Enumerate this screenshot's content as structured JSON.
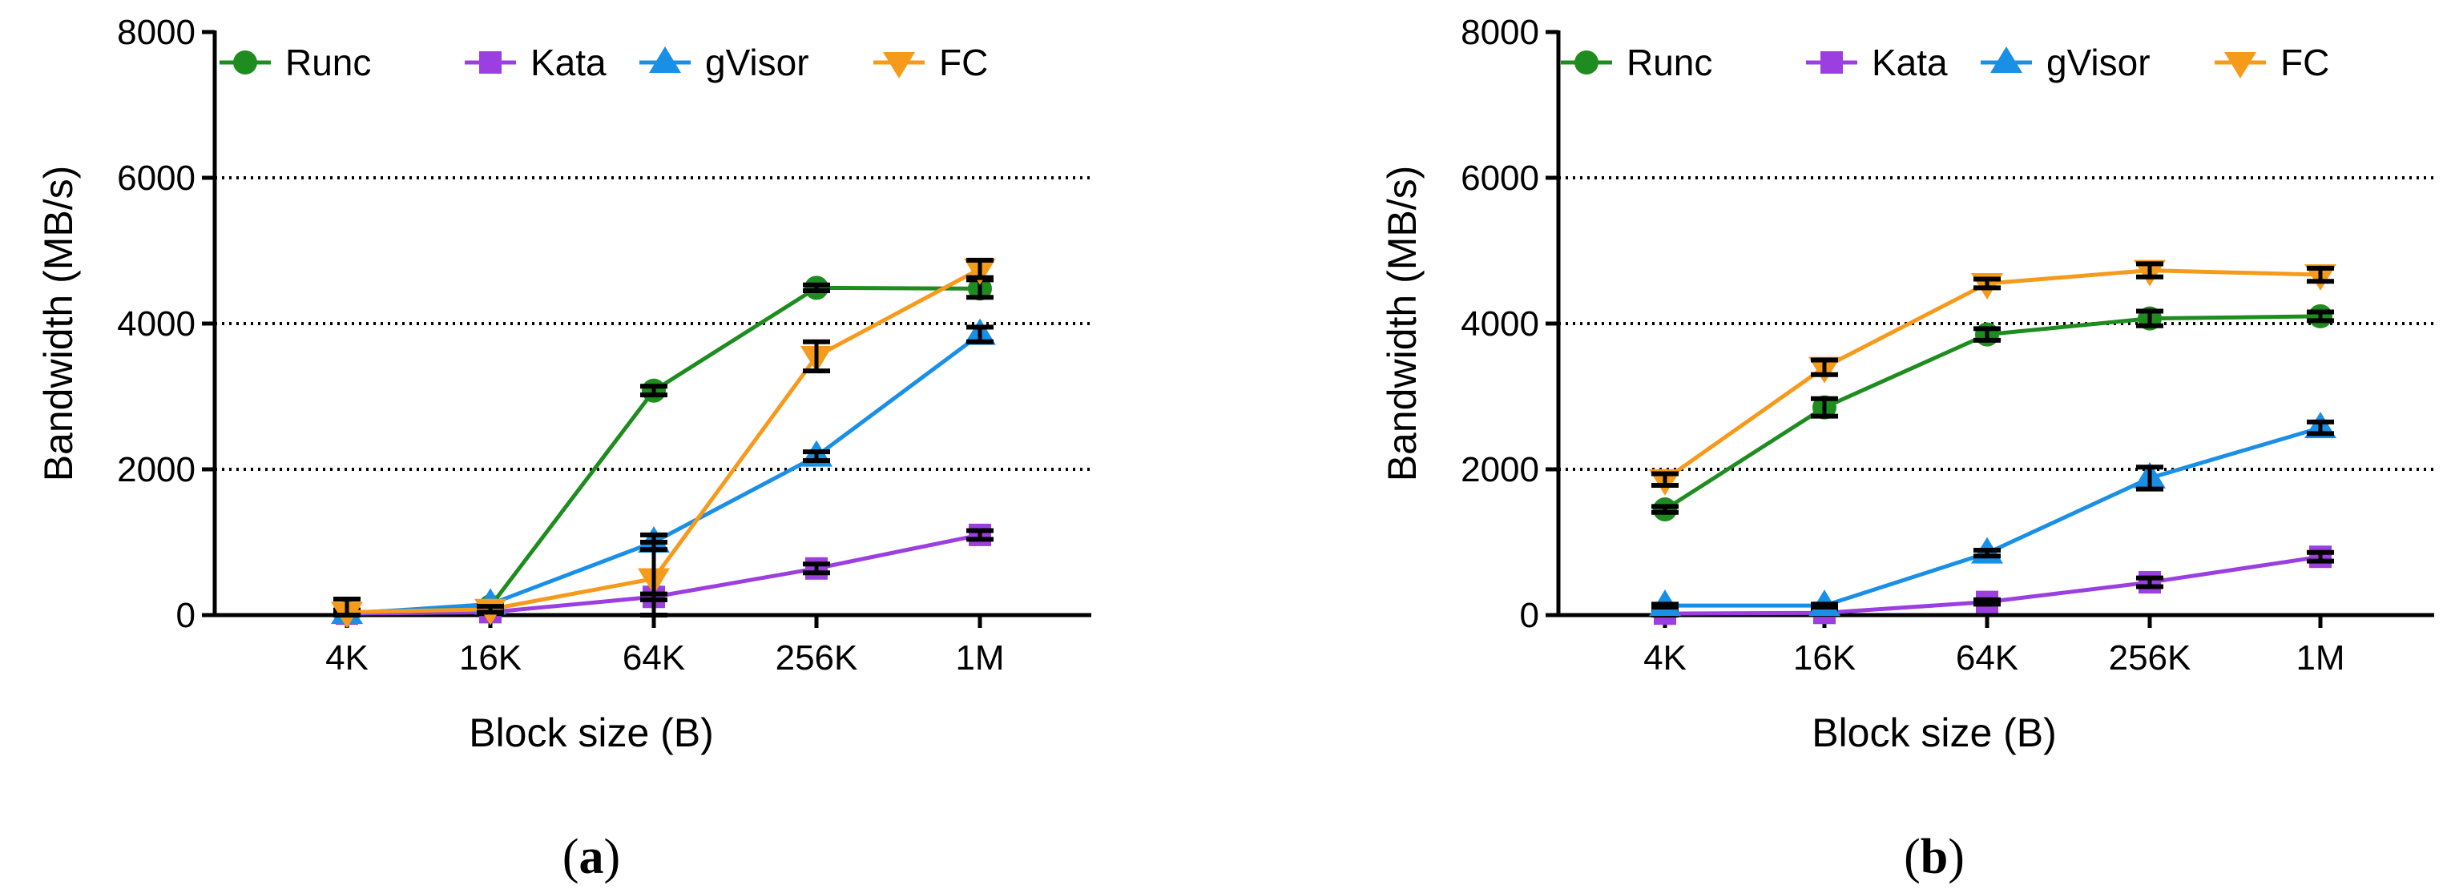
{
  "colors": {
    "Runc": "#1e8c1e",
    "Kata": "#9b3fe0",
    "gVisor": "#1a8fe6",
    "FC": "#f59a1b",
    "errorbar": "#000000",
    "grid": "#000000"
  },
  "legend": [
    {
      "name": "Runc",
      "marker": "circle",
      "icon": "circle-marker-icon"
    },
    {
      "name": "Kata",
      "marker": "square",
      "icon": "square-marker-icon"
    },
    {
      "name": "gVisor",
      "marker": "triangle-up",
      "icon": "triangle-up-marker-icon"
    },
    {
      "name": "FC",
      "marker": "triangle-down",
      "icon": "triangle-down-marker-icon"
    }
  ],
  "chart_data": [
    {
      "type": "line",
      "caption": {
        "open": "(",
        "letter": "a",
        "close": ")"
      },
      "xlabel": "Block size (B)",
      "ylabel": "Bandwidth (MB/s)",
      "ylim": [
        0,
        8000
      ],
      "yticks": [
        0,
        2000,
        4000,
        6000,
        8000
      ],
      "gridlines": [
        2000,
        4000,
        6000
      ],
      "categories": [
        "4K",
        "16K",
        "64K",
        "256K",
        "1M"
      ],
      "series": [
        {
          "name": "Runc",
          "values": [
            30,
            120,
            3080,
            4490,
            4480
          ],
          "errors": [
            40,
            30,
            60,
            40,
            120
          ]
        },
        {
          "name": "Kata",
          "values": [
            20,
            40,
            250,
            640,
            1100
          ],
          "errors": [
            20,
            20,
            40,
            60,
            60
          ]
        },
        {
          "name": "gVisor",
          "values": [
            20,
            150,
            1000,
            2180,
            3850
          ],
          "errors": [
            20,
            20,
            100,
            60,
            100
          ]
        },
        {
          "name": "FC",
          "values": [
            40,
            80,
            500,
            3550,
            4750
          ],
          "errors": [
            180,
            40,
            500,
            200,
            120
          ]
        }
      ]
    },
    {
      "type": "line",
      "caption": {
        "open": "(",
        "letter": "b",
        "close": ")"
      },
      "xlabel": "Block size (B)",
      "ylabel": "Bandwidth (MB/s)",
      "ylim": [
        0,
        8000
      ],
      "yticks": [
        0,
        2000,
        4000,
        6000,
        8000
      ],
      "gridlines": [
        2000,
        4000,
        6000
      ],
      "categories": [
        "4K",
        "16K",
        "64K",
        "256K",
        "1M"
      ],
      "series": [
        {
          "name": "Runc",
          "values": [
            1450,
            2850,
            3850,
            4070,
            4100
          ],
          "errors": [
            40,
            120,
            80,
            100,
            60
          ]
        },
        {
          "name": "Kata",
          "values": [
            20,
            30,
            180,
            450,
            800
          ],
          "errors": [
            20,
            20,
            30,
            60,
            60
          ]
        },
        {
          "name": "gVisor",
          "values": [
            130,
            130,
            850,
            1880,
            2570
          ],
          "errors": [
            20,
            20,
            40,
            150,
            80
          ]
        },
        {
          "name": "FC",
          "values": [
            1860,
            3400,
            4550,
            4730,
            4670
          ],
          "errors": [
            80,
            100,
            60,
            90,
            90
          ]
        }
      ]
    }
  ]
}
